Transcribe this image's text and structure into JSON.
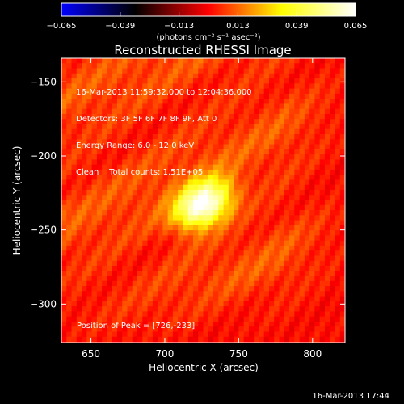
{
  "chart_data": {
    "type": "heatmap",
    "title": "Reconstructed RHESSI Image",
    "xlabel": "Heliocentric X (arcsec)",
    "ylabel": "Heliocentric Y (arcsec)",
    "xlim": [
      630,
      822
    ],
    "ylim": [
      -326,
      -134
    ],
    "x_ticks": [
      "650",
      "700",
      "750",
      "800"
    ],
    "y_ticks": [
      "-150",
      "-200",
      "-250",
      "-300"
    ],
    "colorbar": {
      "unit_label": "(photons cm⁻² s⁻¹ asec⁻²)",
      "range": [
        -0.065,
        0.065
      ],
      "ticks": [
        "−0.065",
        "−0.039",
        "−0.013",
        "0.013",
        "0.039",
        "0.065"
      ],
      "stops": [
        "#0000ff",
        "#000000",
        "#ff0000",
        "#ffff00",
        "#ffffff"
      ]
    },
    "peak": {
      "x": 726,
      "y": -233,
      "value": 0.065
    },
    "annotations": [
      "16-Mar-2013 11:59:32.000 to 12:04:36.000",
      "Detectors: 3F 5F 6F 7F 8F 9F, Att 0",
      "Energy Range: 6.0 - 12.0 keV",
      "Clean    Total counts: 1.51E+05"
    ],
    "peak_label": "Position of Peak = [726,-233]"
  },
  "timestamp": "16-Mar-2013 17:44"
}
